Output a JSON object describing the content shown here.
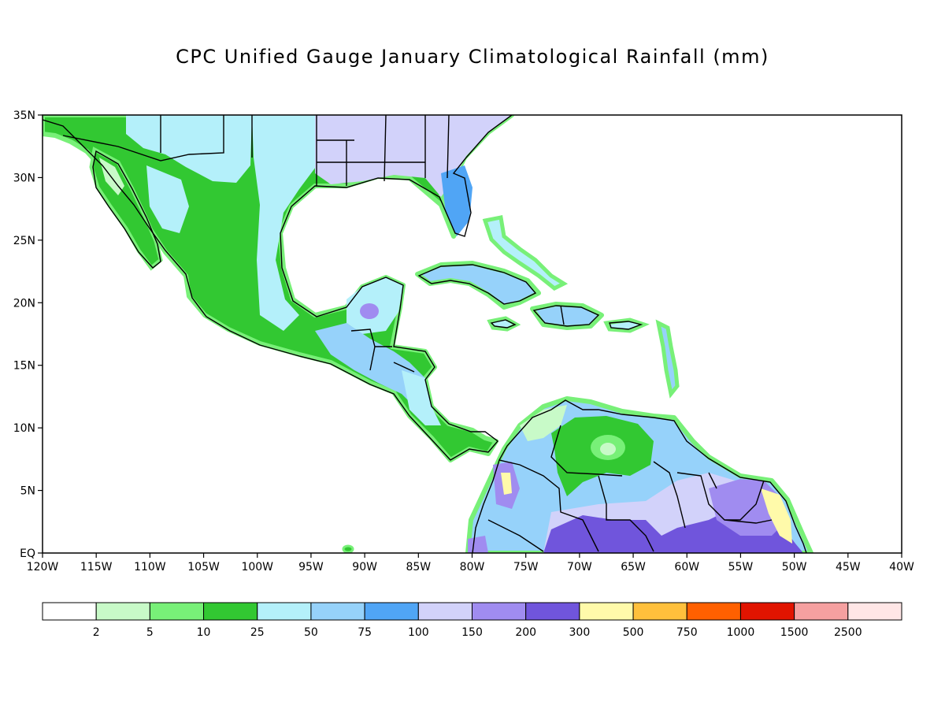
{
  "title": "CPC Unified Gauge January Climatological Rainfall (mm)",
  "map": {
    "lon_range": [
      -120,
      -40
    ],
    "lat_range": [
      0,
      35
    ],
    "lon_ticks": [
      {
        "v": -120,
        "label": "120W"
      },
      {
        "v": -115,
        "label": "115W"
      },
      {
        "v": -110,
        "label": "110W"
      },
      {
        "v": -105,
        "label": "105W"
      },
      {
        "v": -100,
        "label": "100W"
      },
      {
        "v": -95,
        "label": "95W"
      },
      {
        "v": -90,
        "label": "90W"
      },
      {
        "v": -85,
        "label": "85W"
      },
      {
        "v": -80,
        "label": "80W"
      },
      {
        "v": -75,
        "label": "75W"
      },
      {
        "v": -70,
        "label": "70W"
      },
      {
        "v": -65,
        "label": "65W"
      },
      {
        "v": -60,
        "label": "60W"
      },
      {
        "v": -55,
        "label": "55W"
      },
      {
        "v": -50,
        "label": "50W"
      },
      {
        "v": -45,
        "label": "45W"
      },
      {
        "v": -40,
        "label": "40W"
      }
    ],
    "lat_ticks": [
      {
        "v": 35,
        "label": "35N"
      },
      {
        "v": 30,
        "label": "30N"
      },
      {
        "v": 25,
        "label": "25N"
      },
      {
        "v": 20,
        "label": "20N"
      },
      {
        "v": 15,
        "label": "15N"
      },
      {
        "v": 10,
        "label": "10N"
      },
      {
        "v": 5,
        "label": "5N"
      },
      {
        "v": 0,
        "label": "EQ"
      }
    ]
  },
  "colorbar": {
    "colors": [
      "#ffffff",
      "#c8fac8",
      "#78f078",
      "#32c832",
      "#b4f0fa",
      "#96d2fa",
      "#50a5f5",
      "#d2d2fa",
      "#a08cf0",
      "#7055dc",
      "#fffaaa",
      "#ffc03c",
      "#ff6000",
      "#e11400",
      "#f5a0a0",
      "#ffe6e6"
    ],
    "labels": [
      "2",
      "5",
      "10",
      "25",
      "50",
      "75",
      "100",
      "150",
      "200",
      "300",
      "500",
      "750",
      "1000",
      "1500",
      "2500"
    ]
  }
}
